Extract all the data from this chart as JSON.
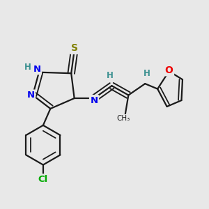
{
  "bg_color": "#e8e8e8",
  "bond_color": "#1a1a1a",
  "bond_width": 1.6,
  "atom_colors": {
    "N": "#0000ee",
    "S": "#808000",
    "O": "#ee0000",
    "Cl": "#00aa00",
    "H": "#3a9090",
    "C": "#1a1a1a"
  },
  "figsize": [
    3.0,
    3.0
  ],
  "dpi": 100
}
